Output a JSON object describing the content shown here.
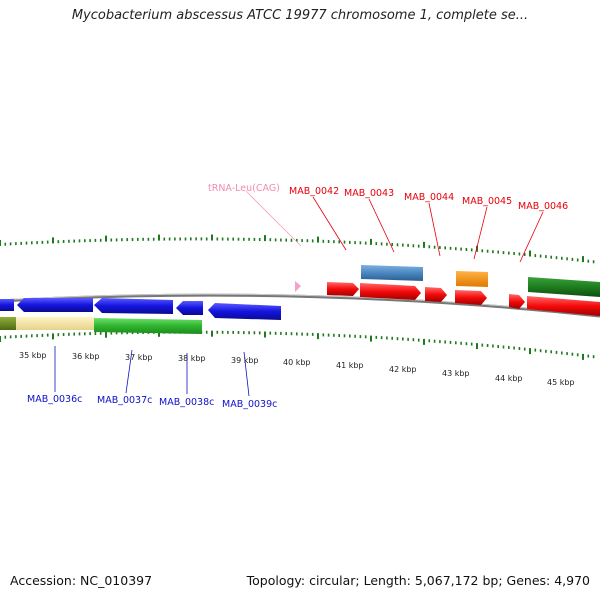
{
  "title": "Mycobacterium abscessus ATCC 19977 chromosome 1, complete se...",
  "footer": {
    "accession": "Accession: NC_010397",
    "topology": "Topology: circular; Length: 5,067,172 bp; Genes: 4,970"
  },
  "forward_labels": [
    {
      "id": "trna",
      "text": "tRNA-Leu(CAG)"
    },
    {
      "id": "mab0042",
      "text": "MAB_0042"
    },
    {
      "id": "mab0043",
      "text": "MAB_0043"
    },
    {
      "id": "mab0044",
      "text": "MAB_0044"
    },
    {
      "id": "mab0045",
      "text": "MAB_0045"
    },
    {
      "id": "mab0046",
      "text": "MAB_0046"
    }
  ],
  "reverse_labels": [
    {
      "id": "mab0036c",
      "text": "MAB_0036c"
    },
    {
      "id": "mab0037c",
      "text": "MAB_0037c"
    },
    {
      "id": "mab0038c",
      "text": "MAB_0038c"
    },
    {
      "id": "mab0039c",
      "text": "MAB_0039c"
    }
  ],
  "kbp_labels": [
    "35 kbp",
    "36 kbp",
    "37 kbp",
    "38 kbp",
    "39 kbp",
    "40 kbp",
    "41 kbp",
    "42 kbp",
    "43 kbp",
    "44 kbp",
    "45 kbp"
  ],
  "colors": {
    "forward_gene": "#ff1010",
    "reverse_gene": "#1a1ae8",
    "cds_green": "#33b233",
    "cds_darkgreen": "#1e7d1e",
    "cds_olive": "#6b8a1f",
    "cds_yellow": "#f2e3a0",
    "cds_steelblue": "#4a87c0",
    "cds_orange": "#ff8c00",
    "trna": "#f5a0c8",
    "tick": "#1f7a1f",
    "backbone": "#808080"
  }
}
